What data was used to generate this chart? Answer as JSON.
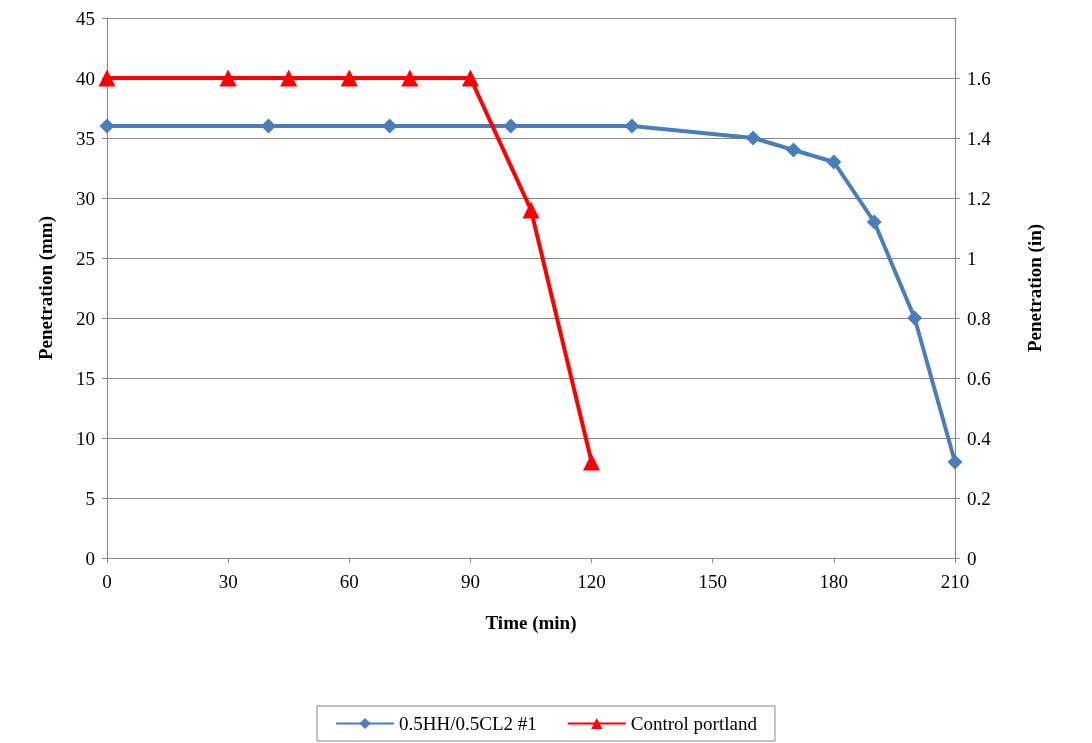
{
  "chart_data": {
    "type": "line",
    "xlabel": "Time (min)",
    "ylabel": "Penetration (mm)",
    "y2label": "Penetration (in)",
    "xlim": [
      0,
      210
    ],
    "xticks": [
      0,
      30,
      60,
      90,
      120,
      150,
      180,
      210
    ],
    "ylim": [
      0,
      45
    ],
    "yticks": [
      0,
      5,
      10,
      15,
      20,
      25,
      30,
      35,
      40,
      45
    ],
    "y2lim": [
      0,
      1.8
    ],
    "y2ticks": [
      0,
      0.2,
      0.4,
      0.6,
      0.8,
      1,
      1.2,
      1.4,
      1.6
    ],
    "grid": "y",
    "legend": "bottom",
    "series": [
      {
        "name": "0.5HH/0.5CL2 #1",
        "color": "#4a7ebb",
        "marker": "diamond",
        "x": [
          0,
          40,
          70,
          100,
          130,
          160,
          170,
          180,
          190,
          200,
          210
        ],
        "values": [
          36,
          36,
          36,
          36,
          36,
          35,
          34,
          33,
          28,
          20,
          8
        ]
      },
      {
        "name": "Control portland",
        "color": "#ff0000",
        "marker": "triangle",
        "x": [
          0,
          30,
          45,
          60,
          75,
          90,
          105,
          120
        ],
        "values": [
          40,
          40,
          40,
          40,
          40,
          40,
          29,
          8
        ]
      }
    ]
  }
}
